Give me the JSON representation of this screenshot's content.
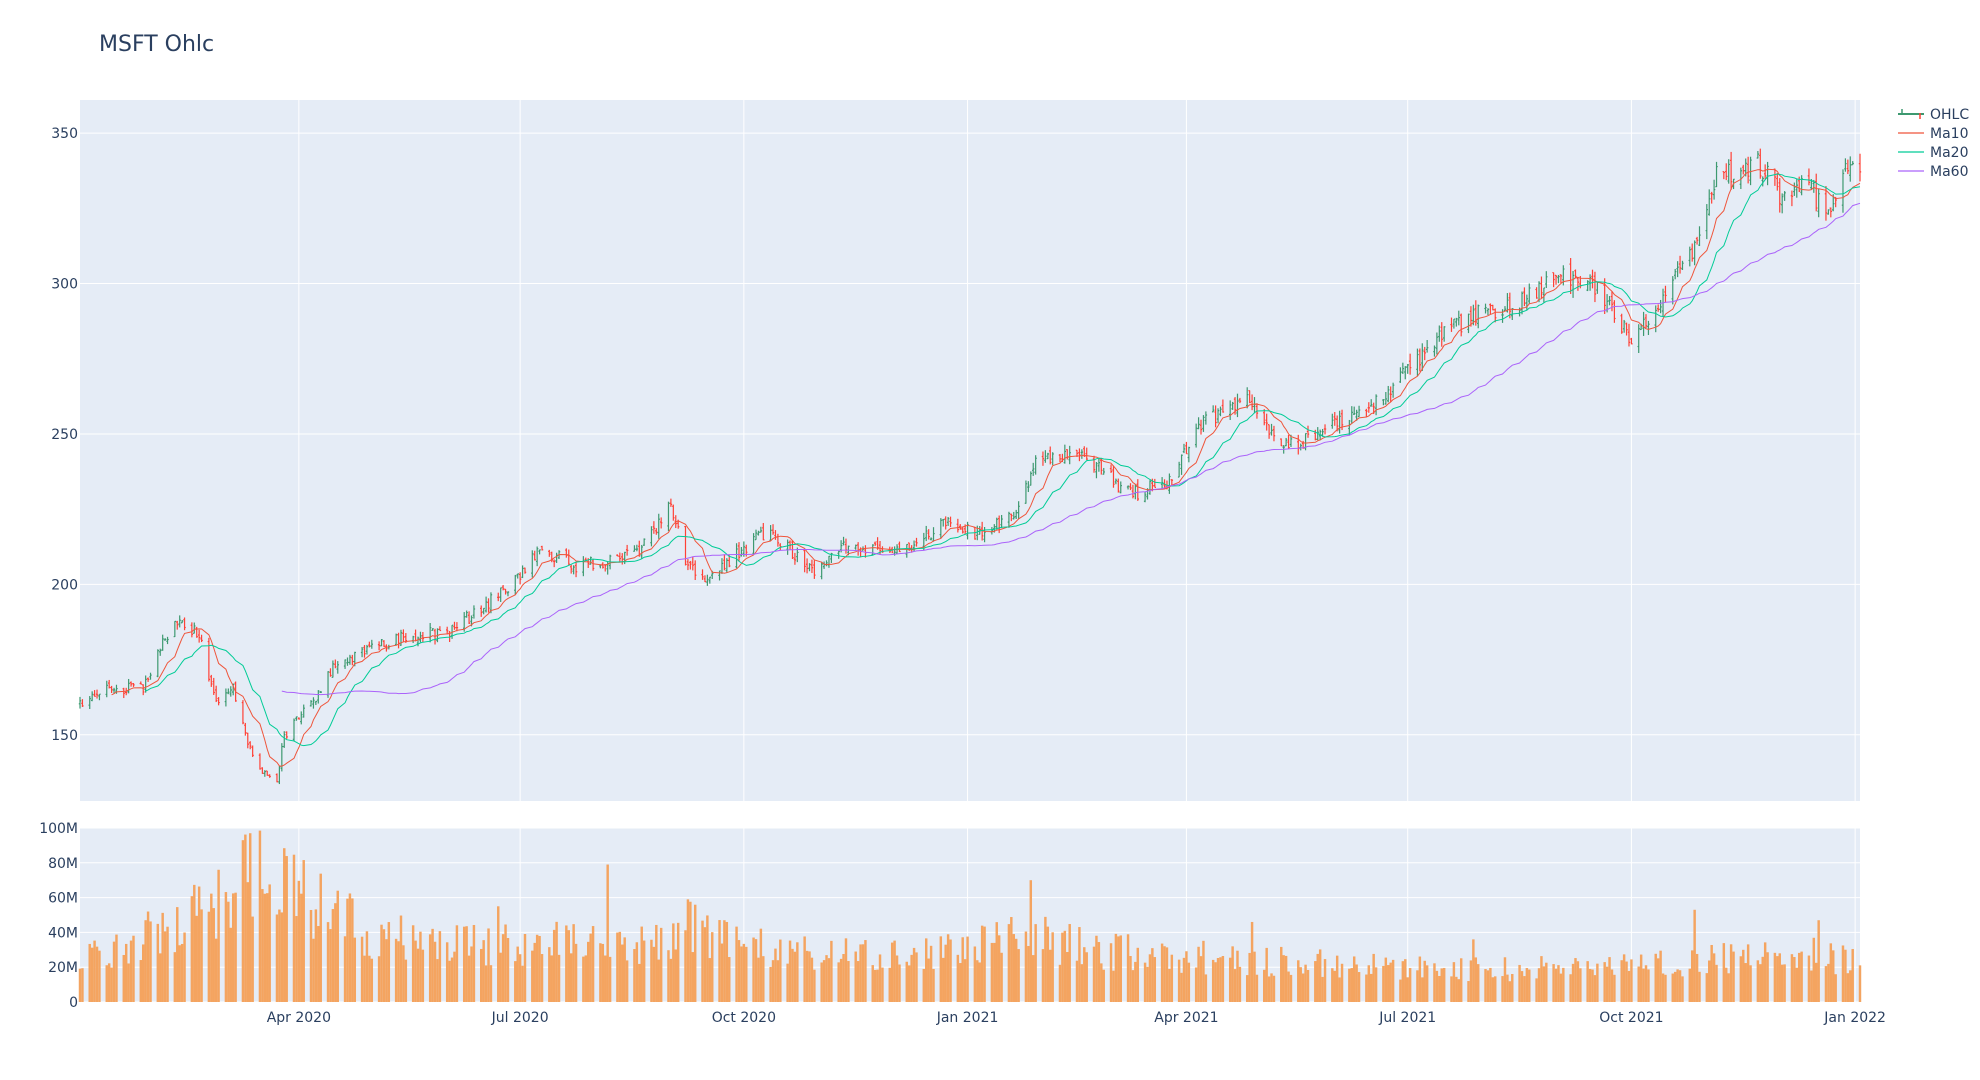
{
  "chart_data": {
    "type": "ohlc",
    "title": "MSFT Ohlc",
    "colors": {
      "increasing": "#3d9970",
      "decreasing": "#ff4136",
      "ma10": "#ef553b",
      "ma20": "#00cc96",
      "ma60": "#ab63fa",
      "volume": "#f4a460",
      "plot_bg": "#e5ecf6",
      "grid": "#ffffff",
      "text": "#2a3f5f"
    },
    "legend": {
      "position": "top-right",
      "entries": [
        "OHLC",
        "Ma10",
        "Ma20",
        "Ma60"
      ]
    },
    "price_axis": {
      "range": [
        128,
        361
      ],
      "ticks": [
        150,
        200,
        250,
        300,
        350
      ],
      "tick_labels": [
        "150",
        "200",
        "250",
        "300",
        "350"
      ],
      "grid": true
    },
    "volume_axis": {
      "range": [
        0,
        100000000
      ],
      "ticks": [
        0,
        20000000,
        40000000,
        60000000,
        80000000,
        100000000
      ],
      "tick_labels": [
        "0",
        "20M",
        "40M",
        "60M",
        "80M",
        "100M"
      ],
      "grid": true
    },
    "x_axis": {
      "range": [
        "2020-01-02",
        "2022-01-03"
      ],
      "ticks": [
        "2020-04-01",
        "2020-07-01",
        "2020-10-01",
        "2021-01-01",
        "2021-04-01",
        "2021-07-01",
        "2021-10-01",
        "2022-01-01"
      ],
      "tick_labels": [
        "Apr 2020",
        "Jul 2020",
        "Oct 2020",
        "Jan 2021",
        "Apr 2021",
        "Jul 2021",
        "Oct 2021",
        "Jan 2022"
      ],
      "grid": true
    },
    "close_anchors": [
      [
        "2020-01-02",
        160
      ],
      [
        "2020-01-15",
        166
      ],
      [
        "2020-01-28",
        165
      ],
      [
        "2020-02-05",
        180
      ],
      [
        "2020-02-10",
        188
      ],
      [
        "2020-02-20",
        184
      ],
      [
        "2020-02-27",
        160
      ],
      [
        "2020-03-05",
        166
      ],
      [
        "2020-03-12",
        145
      ],
      [
        "2020-03-16",
        138
      ],
      [
        "2020-03-23",
        135
      ],
      [
        "2020-03-26",
        150
      ],
      [
        "2020-04-06",
        160
      ],
      [
        "2020-04-15",
        172
      ],
      [
        "2020-04-30",
        178
      ],
      [
        "2020-05-15",
        183
      ],
      [
        "2020-06-01",
        184
      ],
      [
        "2020-06-15",
        192
      ],
      [
        "2020-06-30",
        202
      ],
      [
        "2020-07-10",
        212
      ],
      [
        "2020-07-24",
        206
      ],
      [
        "2020-08-05",
        208
      ],
      [
        "2020-08-20",
        212
      ],
      [
        "2020-09-01",
        226
      ],
      [
        "2020-09-08",
        205
      ],
      [
        "2020-09-18",
        202
      ],
      [
        "2020-10-01",
        212
      ],
      [
        "2020-10-12",
        218
      ],
      [
        "2020-10-29",
        204
      ],
      [
        "2020-11-10",
        212
      ],
      [
        "2020-11-25",
        213
      ],
      [
        "2020-12-10",
        212
      ],
      [
        "2020-12-23",
        222
      ],
      [
        "2021-01-05",
        217
      ],
      [
        "2021-01-20",
        224
      ],
      [
        "2021-01-29",
        240
      ],
      [
        "2021-02-16",
        243
      ],
      [
        "2021-03-01",
        235
      ],
      [
        "2021-03-10",
        230
      ],
      [
        "2021-03-25",
        234
      ],
      [
        "2021-04-09",
        255
      ],
      [
        "2021-04-26",
        261
      ],
      [
        "2021-05-12",
        246
      ],
      [
        "2021-05-26",
        250
      ],
      [
        "2021-06-10",
        256
      ],
      [
        "2021-06-25",
        266
      ],
      [
        "2021-07-09",
        278
      ],
      [
        "2021-07-26",
        289
      ],
      [
        "2021-08-13",
        292
      ],
      [
        "2021-08-31",
        302
      ],
      [
        "2021-09-15",
        300
      ],
      [
        "2021-09-30",
        282
      ],
      [
        "2021-10-12",
        292
      ],
      [
        "2021-10-26",
        310
      ],
      [
        "2021-11-05",
        336
      ],
      [
        "2021-11-22",
        340
      ],
      [
        "2021-12-01",
        330
      ],
      [
        "2021-12-13",
        335
      ],
      [
        "2021-12-20",
        320
      ],
      [
        "2021-12-28",
        341
      ],
      [
        "2022-01-03",
        334
      ]
    ],
    "volume_anchors": [
      [
        "2020-01-02",
        25000000
      ],
      [
        "2020-02-05",
        40000000
      ],
      [
        "2020-02-24",
        55000000
      ],
      [
        "2020-03-10",
        72000000
      ],
      [
        "2020-03-20",
        85000000
      ],
      [
        "2020-04-10",
        55000000
      ],
      [
        "2020-05-01",
        40000000
      ],
      [
        "2020-06-01",
        34000000
      ],
      [
        "2020-07-15",
        35000000
      ],
      [
        "2020-08-15",
        30000000
      ],
      [
        "2020-09-08",
        45000000
      ],
      [
        "2020-10-15",
        29000000
      ],
      [
        "2020-12-01",
        26000000
      ],
      [
        "2021-01-27",
        38000000
      ],
      [
        "2021-03-01",
        30000000
      ],
      [
        "2021-04-01",
        27000000
      ],
      [
        "2021-06-01",
        22000000
      ],
      [
        "2021-08-01",
        19000000
      ],
      [
        "2021-09-15",
        21000000
      ],
      [
        "2021-11-01",
        25000000
      ],
      [
        "2021-12-15",
        30000000
      ],
      [
        "2022-01-03",
        22000000
      ]
    ],
    "volume_spikes": [
      [
        "2020-03-12",
        97000000
      ],
      [
        "2020-03-09",
        93000000
      ],
      [
        "2020-02-28",
        76000000
      ],
      [
        "2020-08-06",
        79000000
      ],
      [
        "2020-09-08",
        59000000
      ],
      [
        "2021-01-27",
        70000000
      ],
      [
        "2020-01-30",
        52000000
      ],
      [
        "2021-04-28",
        46000000
      ],
      [
        "2021-07-28",
        36000000
      ],
      [
        "2021-10-27",
        53000000
      ],
      [
        "2021-12-17",
        47000000
      ],
      [
        "2020-06-22",
        55000000
      ]
    ]
  }
}
